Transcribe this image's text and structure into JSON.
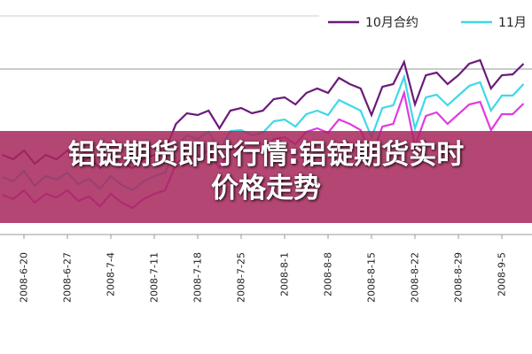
{
  "chart_data": {
    "type": "line",
    "title": "铝锭期货即时行情:铝锭期货实时价格走势",
    "categories": [
      null,
      null,
      "2008-6-20",
      null,
      null,
      null,
      "2008-6-27",
      null,
      null,
      null,
      "2008-7-4",
      null,
      null,
      null,
      "2008-7-11",
      null,
      null,
      null,
      "2008-7-18",
      null,
      null,
      null,
      "2008-7-25",
      null,
      null,
      null,
      "2008-8-1",
      null,
      null,
      null,
      "2008-8-8",
      null,
      null,
      null,
      "2008-8-15",
      null,
      null,
      null,
      "2008-8-22",
      null,
      null,
      null,
      "2008-8-29",
      null,
      null,
      null,
      "2008-9-5",
      null,
      null
    ],
    "series": [
      {
        "name": "10月合约",
        "color": "#6a1b7a",
        "values": [
          90,
          85,
          95,
          80,
          90,
          85,
          95,
          80,
          87,
          75,
          90,
          80,
          75,
          85,
          90,
          95,
          125,
          137,
          135,
          140,
          120,
          140,
          143,
          137,
          140,
          153,
          155,
          147,
          160,
          165,
          160,
          177,
          170,
          165,
          135,
          167,
          170,
          195,
          147,
          180,
          183,
          170,
          180,
          193,
          197,
          165,
          180,
          181,
          193
        ]
      },
      {
        "name": "11月",
        "color": "#3fd8e8",
        "values": [
          65,
          60,
          72,
          55,
          66,
          62,
          70,
          57,
          63,
          52,
          66,
          56,
          50,
          60,
          66,
          70,
          100,
          112,
          108,
          116,
          95,
          117,
          118,
          112,
          115,
          128,
          130,
          122,
          136,
          140,
          135,
          152,
          146,
          140,
          110,
          143,
          146,
          178,
          120,
          155,
          158,
          146,
          157,
          168,
          172,
          140,
          157,
          157,
          170
        ]
      },
      {
        "color": "#e03ce0",
        "values": [
          45,
          40,
          50,
          36,
          46,
          42,
          50,
          38,
          43,
          32,
          46,
          36,
          30,
          40,
          46,
          50,
          80,
          90,
          88,
          95,
          75,
          96,
          98,
          92,
          95,
          108,
          110,
          102,
          116,
          120,
          115,
          130,
          125,
          118,
          88,
          122,
          125,
          160,
          100,
          134,
          138,
          125,
          136,
          147,
          150,
          118,
          136,
          136,
          148
        ]
      }
    ],
    "ylim": [
      0,
      265
    ]
  }
}
